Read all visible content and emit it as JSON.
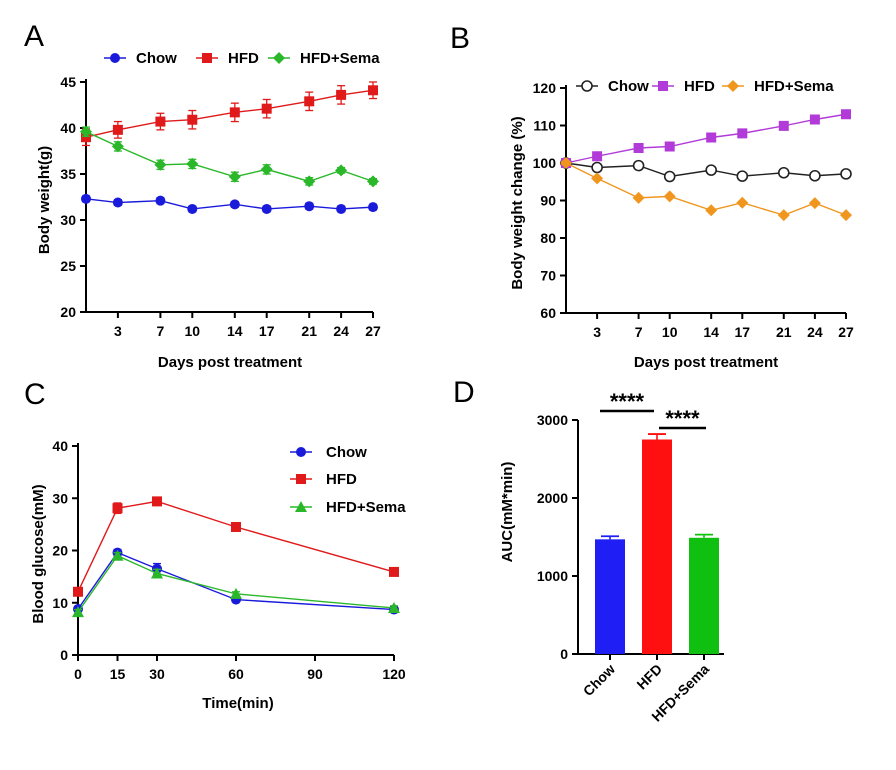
{
  "panels": {
    "A": {
      "letter": "A",
      "xlabel": "Days post treatment",
      "ylabel": "Body weight(g)"
    },
    "B": {
      "letter": "B",
      "xlabel": "Days post treatment",
      "ylabel": "Body weight change (%)"
    },
    "C": {
      "letter": "C",
      "xlabel": "Time(min)",
      "ylabel": "Blood glucose(mM)"
    },
    "D": {
      "letter": "D",
      "ylabel": "AUC(mM*min)",
      "sig_labels": [
        "****",
        "****"
      ]
    }
  },
  "chart_data": [
    {
      "panel": "A",
      "type": "line",
      "xlabel": "Days post treatment",
      "ylabel": "Body weight(g)",
      "xticks": [
        3,
        7,
        10,
        14,
        17,
        21,
        24,
        27
      ],
      "xlim": [
        0,
        27
      ],
      "ylim": [
        20,
        45
      ],
      "yticks": [
        20,
        25,
        30,
        35,
        40,
        45
      ],
      "legend_position": "top",
      "x": [
        0,
        3,
        7,
        10,
        14,
        17,
        21,
        24,
        27
      ],
      "series": [
        {
          "name": "Chow",
          "color": "#1a1adb",
          "marker": "circle",
          "values": [
            32.3,
            31.9,
            32.1,
            31.2,
            31.7,
            31.2,
            31.5,
            31.2,
            31.4
          ],
          "errors": [
            0.3,
            0.3,
            0.3,
            0.3,
            0.3,
            0.3,
            0.3,
            0.3,
            0.3
          ]
        },
        {
          "name": "HFD",
          "color": "#e01a1a",
          "marker": "square",
          "values": [
            39.0,
            39.8,
            40.7,
            40.9,
            41.7,
            42.1,
            42.9,
            43.6,
            44.1
          ],
          "errors": [
            0.9,
            0.9,
            0.9,
            1.0,
            1.0,
            1.0,
            1.0,
            1.0,
            0.9
          ]
        },
        {
          "name": "HFD+Sema",
          "color": "#2ab82a",
          "marker": "diamond",
          "values": [
            39.6,
            38.0,
            36.0,
            36.1,
            34.7,
            35.5,
            34.2,
            35.4,
            34.2
          ],
          "errors": [
            0.5,
            0.5,
            0.5,
            0.5,
            0.5,
            0.5,
            0.4,
            0.3,
            0.3
          ]
        }
      ]
    },
    {
      "panel": "B",
      "type": "line",
      "xlabel": "Days post treatment",
      "ylabel": "Body weight change (%)",
      "xticks": [
        3,
        7,
        10,
        14,
        17,
        21,
        24,
        27
      ],
      "xlim": [
        0,
        27
      ],
      "ylim": [
        60,
        120
      ],
      "yticks": [
        60,
        70,
        80,
        90,
        100,
        110,
        120
      ],
      "legend_position": "top",
      "x": [
        0,
        3,
        7,
        10,
        14,
        17,
        21,
        24,
        27
      ],
      "series": [
        {
          "name": "Chow",
          "color": "#222222",
          "marker": "open-circle",
          "values": [
            100,
            98.8,
            99.3,
            96.4,
            98.1,
            96.5,
            97.4,
            96.6,
            97.1
          ]
        },
        {
          "name": "HFD",
          "color": "#b23ad8",
          "marker": "square",
          "values": [
            100,
            101.8,
            104.0,
            104.4,
            106.8,
            107.9,
            109.9,
            111.6,
            113.0
          ]
        },
        {
          "name": "HFD+Sema",
          "color": "#f0961e",
          "marker": "diamond",
          "values": [
            100,
            95.9,
            90.7,
            91.1,
            87.4,
            89.4,
            86.1,
            89.3,
            86.1
          ]
        }
      ]
    },
    {
      "panel": "C",
      "type": "line",
      "xlabel": "Time(min)",
      "ylabel": "Blood glucose(mM)",
      "xticks": [
        0,
        15,
        30,
        60,
        90,
        120
      ],
      "xlim": [
        0,
        120
      ],
      "ylim": [
        0,
        40
      ],
      "yticks": [
        0,
        10,
        20,
        30,
        40
      ],
      "legend_position": "right",
      "x": [
        0,
        15,
        30,
        60,
        120
      ],
      "series": [
        {
          "name": "Chow",
          "color": "#1a1adb",
          "marker": "circle",
          "values": [
            8.8,
            19.6,
            16.5,
            10.6,
            8.7
          ],
          "errors": [
            0.5,
            0.6,
            1.0,
            0.4,
            0.4
          ]
        },
        {
          "name": "HFD",
          "color": "#e01a1a",
          "marker": "square",
          "values": [
            12.1,
            28.1,
            29.4,
            24.5,
            15.9
          ],
          "errors": [
            0.5,
            1.0,
            0.6,
            0.4,
            0.4
          ]
        },
        {
          "name": "HFD+Sema",
          "color": "#2ab82a",
          "marker": "triangle",
          "values": [
            8.2,
            19.0,
            15.6,
            11.7,
            9.0
          ],
          "errors": [
            0.5,
            0.6,
            0.8,
            0.4,
            0.4
          ]
        }
      ]
    },
    {
      "panel": "D",
      "type": "bar",
      "ylabel": "AUC(mM*min)",
      "ylim": [
        0,
        3000
      ],
      "yticks": [
        0,
        1000,
        2000,
        3000
      ],
      "categories": [
        "Chow",
        "HFD",
        "HFD+Sema"
      ],
      "values": [
        1470,
        2750,
        1490
      ],
      "errors": [
        40,
        70,
        40
      ],
      "colors": [
        "#1e1ef5",
        "#ff1010",
        "#10c010"
      ],
      "significance": [
        {
          "from": 0,
          "to": 1,
          "label": "****"
        },
        {
          "from": 1,
          "to": 2,
          "label": "****"
        }
      ]
    }
  ]
}
